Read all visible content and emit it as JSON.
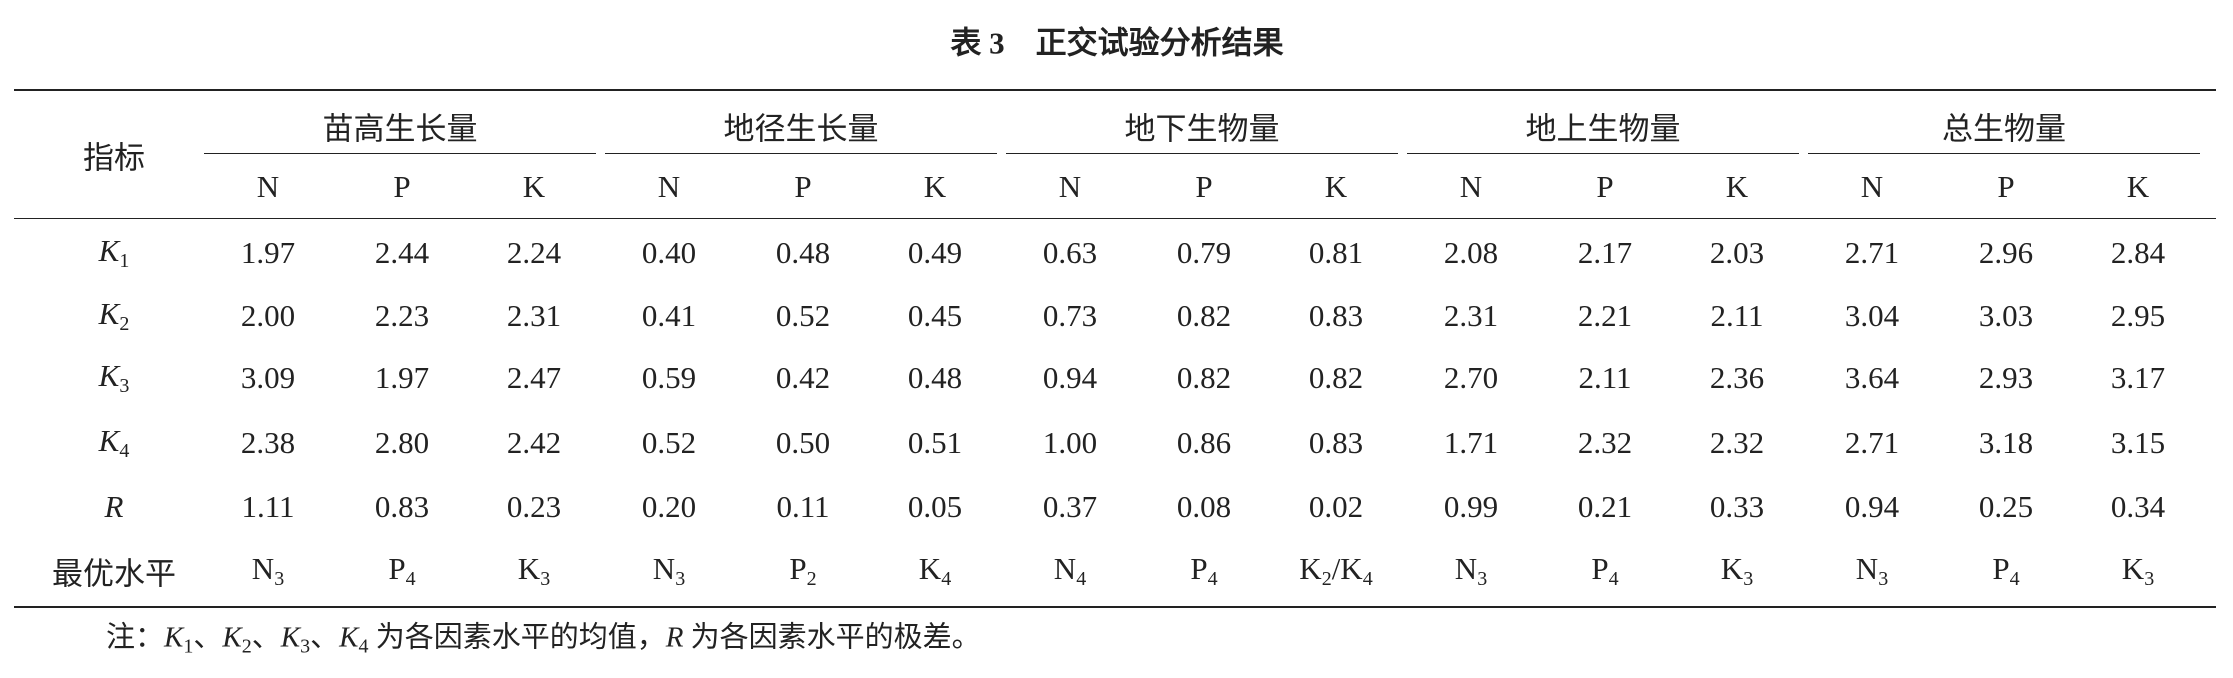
{
  "title": "表 3　正交试验分析结果",
  "table": {
    "corner": "指标",
    "groups": [
      {
        "name": "苗高生长量",
        "subs": [
          "N",
          "P",
          "K"
        ]
      },
      {
        "name": "地径生长量",
        "subs": [
          "N",
          "P",
          "K"
        ]
      },
      {
        "name": "地下生物量",
        "subs": [
          "N",
          "P",
          "K"
        ]
      },
      {
        "name": "地上生物量",
        "subs": [
          "N",
          "P",
          "K"
        ]
      },
      {
        "name": "总生物量",
        "subs": [
          "N",
          "P",
          "K"
        ]
      }
    ],
    "rows": [
      {
        "label": {
          "var": "K",
          "sub": "1"
        },
        "cells": [
          "1.97",
          "2.44",
          "2.24",
          "0.40",
          "0.48",
          "0.49",
          "0.63",
          "0.79",
          "0.81",
          "2.08",
          "2.17",
          "2.03",
          "2.71",
          "2.96",
          "2.84"
        ]
      },
      {
        "label": {
          "var": "K",
          "sub": "2"
        },
        "cells": [
          "2.00",
          "2.23",
          "2.31",
          "0.41",
          "0.52",
          "0.45",
          "0.73",
          "0.82",
          "0.83",
          "2.31",
          "2.21",
          "2.11",
          "3.04",
          "3.03",
          "2.95"
        ]
      },
      {
        "label": {
          "var": "K",
          "sub": "3"
        },
        "cells": [
          "3.09",
          "1.97",
          "2.47",
          "0.59",
          "0.42",
          "0.48",
          "0.94",
          "0.82",
          "0.82",
          "2.70",
          "2.11",
          "2.36",
          "3.64",
          "2.93",
          "3.17"
        ]
      },
      {
        "label": {
          "var": "K",
          "sub": "4"
        },
        "cells": [
          "2.38",
          "2.80",
          "2.42",
          "0.52",
          "0.50",
          "0.51",
          "1.00",
          "0.86",
          "0.83",
          "1.71",
          "2.32",
          "2.32",
          "2.71",
          "3.18",
          "3.15"
        ]
      },
      {
        "label": {
          "var": "R"
        },
        "cells": [
          "1.11",
          "0.83",
          "0.23",
          "0.20",
          "0.11",
          "0.05",
          "0.37",
          "0.08",
          "0.02",
          "0.99",
          "0.21",
          "0.33",
          "0.94",
          "0.25",
          "0.34"
        ]
      }
    ],
    "optimal": {
      "label": "最优水平",
      "cells": [
        [
          {
            "base": "N",
            "sub": "3"
          }
        ],
        [
          {
            "base": "P",
            "sub": "4"
          }
        ],
        [
          {
            "base": "K",
            "sub": "3"
          }
        ],
        [
          {
            "base": "N",
            "sub": "3"
          }
        ],
        [
          {
            "base": "P",
            "sub": "2"
          }
        ],
        [
          {
            "base": "K",
            "sub": "4"
          }
        ],
        [
          {
            "base": "N",
            "sub": "4"
          }
        ],
        [
          {
            "base": "P",
            "sub": "4"
          }
        ],
        [
          {
            "base": "K",
            "sub": "2"
          },
          {
            "base": "/K",
            "sub": "4"
          }
        ],
        [
          {
            "base": "N",
            "sub": "3"
          }
        ],
        [
          {
            "base": "P",
            "sub": "4"
          }
        ],
        [
          {
            "base": "K",
            "sub": "3"
          }
        ],
        [
          {
            "base": "N",
            "sub": "3"
          }
        ],
        [
          {
            "base": "P",
            "sub": "4"
          }
        ],
        [
          {
            "base": "K",
            "sub": "3"
          }
        ]
      ]
    }
  },
  "note": [
    {
      "text": "注："
    },
    {
      "var": "K",
      "sub": "1"
    },
    {
      "text": "、"
    },
    {
      "var": "K",
      "sub": "2"
    },
    {
      "text": "、"
    },
    {
      "var": "K",
      "sub": "3"
    },
    {
      "text": "、"
    },
    {
      "var": "K",
      "sub": "4"
    },
    {
      "text": " 为各因素水平的均值，"
    },
    {
      "var": "R"
    },
    {
      "text": " 为各因素水平的极差。"
    }
  ]
}
